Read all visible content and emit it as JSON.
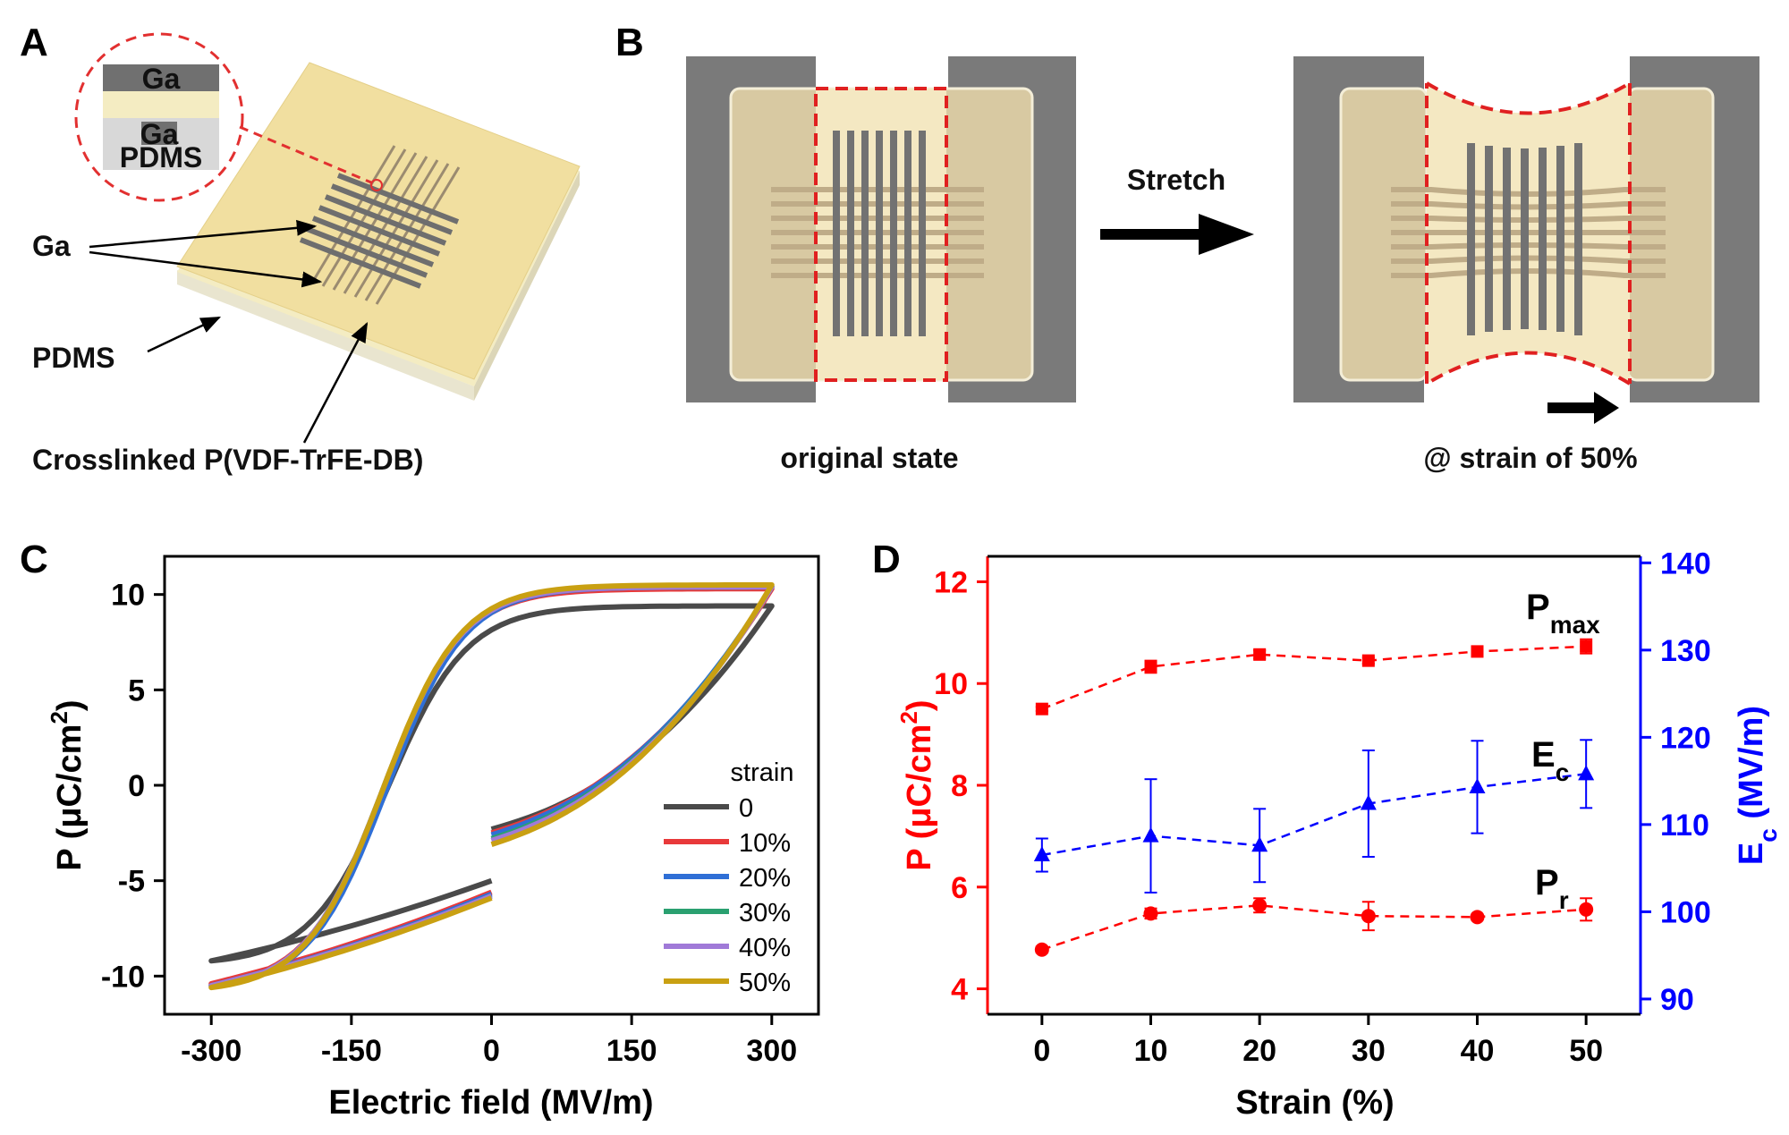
{
  "panels": {
    "a": "A",
    "b": "B",
    "c": "C",
    "d": "D"
  },
  "panel_a": {
    "inset_top": "Ga",
    "inset_bottom_ga": "Ga",
    "inset_pdms": "PDMS",
    "label_ga": "Ga",
    "label_pdms": "PDMS",
    "label_film": "Crosslinked P(VDF-TrFE-DB)"
  },
  "panel_b": {
    "arrow_label": "Stretch",
    "caption_left": "original state",
    "caption_right": "@ strain of 50%"
  },
  "colors": {
    "s0": "#4a4a4a",
    "s10": "#e8393a",
    "s20": "#2f6fd6",
    "s30": "#2aa070",
    "s40": "#a07ad8",
    "s50": "#c9a012",
    "red": "#ff0000",
    "blue": "#0000ff"
  },
  "chart_data": [
    {
      "type": "line",
      "title": "",
      "xlabel": "Electric field (MV/m)",
      "ylabel": "P (μC/cm²)",
      "ylabel_parts": {
        "base": "P (μC/cm",
        "sup": "2",
        "end": ")"
      },
      "xlim": [
        -350,
        350
      ],
      "ylim": [
        -12,
        12
      ],
      "xticks": [
        -300,
        -150,
        0,
        150,
        300
      ],
      "xtick_labels": [
        "-300",
        "-150",
        "0",
        "150",
        "300"
      ],
      "yticks": [
        10,
        5,
        0,
        -5,
        -10
      ],
      "ytick_labels": [
        "10",
        "5",
        "0",
        "-5",
        "-10"
      ],
      "legend_title": "strain",
      "legend_position": "bottom-right",
      "series": [
        {
          "name": "0",
          "color_key": "s0",
          "pmax": 9.4,
          "pr": 4.7,
          "ec": 110,
          "pneg": -9.2,
          "pstart": -2.3,
          "pend": -5.0
        },
        {
          "name": "10%",
          "color_key": "s10",
          "pmax": 10.3,
          "pr": 5.4,
          "ec": 115,
          "pneg": -10.4,
          "pstart": -2.5,
          "pend": -5.6
        },
        {
          "name": "20%",
          "color_key": "s20",
          "pmax": 10.4,
          "pr": 5.5,
          "ec": 112,
          "pneg": -10.5,
          "pstart": -2.6,
          "pend": -5.7
        },
        {
          "name": "30%",
          "color_key": "s30",
          "pmax": 10.4,
          "pr": 5.4,
          "ec": 116,
          "pneg": -10.5,
          "pstart": -2.8,
          "pend": -5.8
        },
        {
          "name": "40%",
          "color_key": "s40",
          "pmax": 10.4,
          "pr": 5.4,
          "ec": 116,
          "pneg": -10.5,
          "pstart": -2.9,
          "pend": -5.8
        },
        {
          "name": "50%",
          "color_key": "s50",
          "pmax": 10.5,
          "pr": 5.5,
          "ec": 116,
          "pneg": -10.6,
          "pstart": -3.1,
          "pend": -5.9
        }
      ]
    },
    {
      "type": "scatter",
      "title": "",
      "xlabel": "Strain (%)",
      "ylabel_left_parts": {
        "base": "P (μC/cm",
        "sup": "2",
        "end": ")"
      },
      "ylabel_right_parts": {
        "base": "E",
        "sub": "c",
        "end": " (MV/m)"
      },
      "xlim": [
        -5,
        55
      ],
      "ylim_left": [
        3.5,
        12.5
      ],
      "ylim_right": [
        88.25,
        140.75
      ],
      "xticks": [
        0,
        10,
        20,
        30,
        40,
        50
      ],
      "xtick_labels": [
        "0",
        "10",
        "20",
        "30",
        "40",
        "50"
      ],
      "yticks_left": [
        4,
        6,
        8,
        10,
        12
      ],
      "ytick_left_labels": [
        "4",
        "6",
        "8",
        "10",
        "12"
      ],
      "yticks_right": [
        90,
        100,
        110,
        120,
        130,
        140
      ],
      "ytick_right_labels": [
        "90",
        "100",
        "110",
        "120",
        "130",
        "140"
      ],
      "x": [
        0,
        10,
        20,
        30,
        40,
        50
      ],
      "series": [
        {
          "name": "Pmax",
          "label_base": "P",
          "label_sub": "max",
          "axis": "left",
          "marker": "square",
          "color_key": "red",
          "values": [
            9.5,
            10.33,
            10.57,
            10.45,
            10.63,
            10.73
          ],
          "errors": [
            0.04,
            0.12,
            0.08,
            0.06,
            0.1,
            0.14
          ]
        },
        {
          "name": "Pr",
          "label_base": "P",
          "label_sub": "r",
          "axis": "left",
          "marker": "circle",
          "color_key": "red",
          "values": [
            4.77,
            5.48,
            5.64,
            5.43,
            5.41,
            5.56
          ],
          "errors": [
            0.06,
            0.1,
            0.14,
            0.28,
            0.05,
            0.22
          ]
        },
        {
          "name": "Ec",
          "label_base": "E",
          "label_sub": "c",
          "axis": "right",
          "marker": "triangle",
          "color_key": "blue",
          "values": [
            106.5,
            108.7,
            107.6,
            112.4,
            114.3,
            115.8
          ],
          "errors": [
            1.9,
            6.5,
            4.2,
            6.1,
            5.3,
            3.9
          ]
        }
      ]
    }
  ]
}
